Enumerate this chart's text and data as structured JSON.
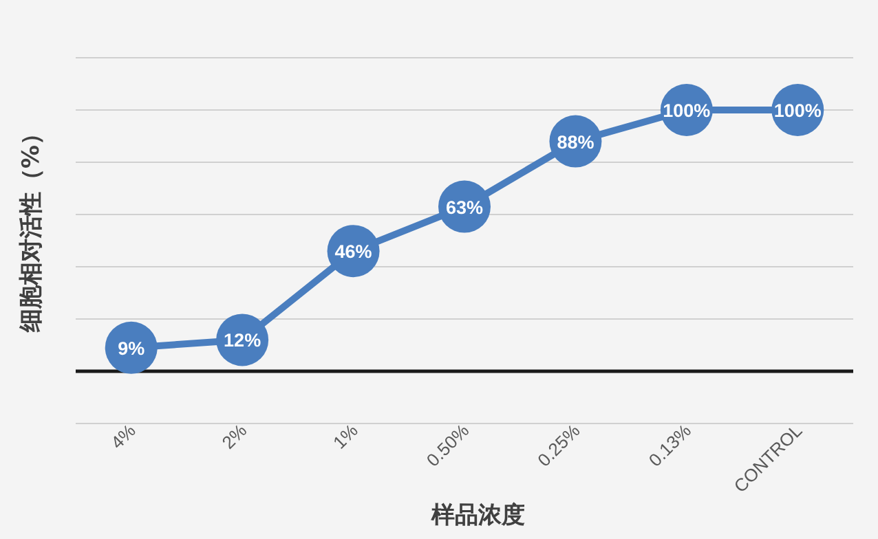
{
  "chart_data": {
    "type": "line",
    "xlabel": "样品浓度",
    "ylabel": "细胞相对活性（%）",
    "categories": [
      "4%",
      "2%",
      "1%",
      "0.50%",
      "0.25%",
      "0.13%",
      "CONTROL"
    ],
    "series": [
      {
        "color": "#4a7ebf",
        "values": [
          9,
          12,
          46,
          63,
          88,
          100,
          100
        ],
        "value_labels": [
          "9%",
          "12%",
          "46%",
          "63%",
          "88%",
          "100%",
          "100%"
        ]
      }
    ],
    "ylim": [
      -20,
      120
    ],
    "yticks": [
      {
        "value": -20,
        "label": null
      },
      {
        "value": 0,
        "label": null
      },
      {
        "value": 20,
        "label": null
      },
      {
        "value": 40,
        "label": null
      },
      {
        "value": 60,
        "label": null
      },
      {
        "value": 80,
        "label": null
      },
      {
        "value": 100,
        "label": null
      },
      {
        "value": 120,
        "label": null
      }
    ],
    "grid": "y",
    "tick_labels": "x",
    "marker": "circle"
  }
}
